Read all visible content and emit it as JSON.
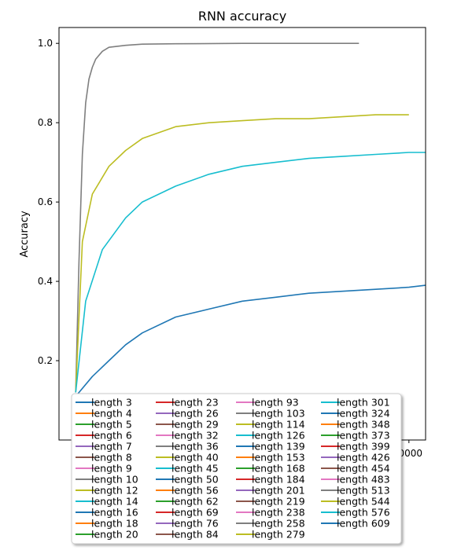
{
  "chart_data": {
    "type": "line",
    "title": "RNN accuracy",
    "xlabel": "",
    "ylabel": "Accuracy",
    "xlim": [
      -500,
      10500
    ],
    "ylim": [
      0.0,
      1.04
    ],
    "yticks": [
      0.2,
      0.4,
      0.6,
      0.8,
      1.0
    ],
    "ytick_labels": [
      "0.2",
      "0.4",
      "0.6",
      "0.8",
      "1.0"
    ],
    "xtick_partial_label": "0000",
    "xtick_partial_value": 10000,
    "grid": false,
    "legend_placement": "bottom",
    "legend_columns": 4,
    "palette": [
      "#1f77b4",
      "#ff7f0e",
      "#2ca02c",
      "#d62728",
      "#9467bd",
      "#8c564b",
      "#e377c2",
      "#7f7f7f",
      "#bcbd22",
      "#17becf"
    ],
    "series": [
      {
        "name": "length 3"
      },
      {
        "name": "length 4"
      },
      {
        "name": "length 5"
      },
      {
        "name": "length 6"
      },
      {
        "name": "length 7"
      },
      {
        "name": "length 8"
      },
      {
        "name": "length 9"
      },
      {
        "name": "length 10"
      },
      {
        "name": "length 12"
      },
      {
        "name": "length 14"
      },
      {
        "name": "length 16"
      },
      {
        "name": "length 18"
      },
      {
        "name": "length 20"
      },
      {
        "name": "length 23"
      },
      {
        "name": "length 26"
      },
      {
        "name": "length 29"
      },
      {
        "name": "length 32"
      },
      {
        "name": "length 36",
        "x": [
          0,
          100,
          200,
          300,
          400,
          500,
          600,
          800,
          1000,
          1500,
          2000,
          3000,
          5000,
          8500
        ],
        "y": [
          0.12,
          0.45,
          0.72,
          0.85,
          0.91,
          0.94,
          0.96,
          0.98,
          0.99,
          0.995,
          0.998,
          0.999,
          1.0,
          1.0
        ]
      },
      {
        "name": "length 40",
        "x": [
          0,
          200,
          500,
          1000,
          1500,
          2000,
          3000,
          4000,
          5000,
          6000,
          7000,
          8000,
          9000,
          10000
        ],
        "y": [
          0.12,
          0.5,
          0.62,
          0.69,
          0.73,
          0.76,
          0.79,
          0.8,
          0.805,
          0.81,
          0.81,
          0.815,
          0.82,
          0.82
        ]
      },
      {
        "name": "length 45",
        "x": [
          0,
          300,
          800,
          1500,
          2000,
          3000,
          4000,
          5000,
          6000,
          7000,
          8000,
          9000,
          10000,
          10500
        ],
        "y": [
          0.12,
          0.35,
          0.48,
          0.56,
          0.6,
          0.64,
          0.67,
          0.69,
          0.7,
          0.71,
          0.715,
          0.72,
          0.725,
          0.725
        ]
      },
      {
        "name": "length 50"
      },
      {
        "name": "length 56"
      },
      {
        "name": "length 62"
      },
      {
        "name": "length 69"
      },
      {
        "name": "length 76"
      },
      {
        "name": "length 84"
      },
      {
        "name": "length 93"
      },
      {
        "name": "length 103"
      },
      {
        "name": "length 114"
      },
      {
        "name": "length 126"
      },
      {
        "name": "length 139"
      },
      {
        "name": "length 153"
      },
      {
        "name": "length 168"
      },
      {
        "name": "length 184"
      },
      {
        "name": "length 201"
      },
      {
        "name": "length 219"
      },
      {
        "name": "length 238"
      },
      {
        "name": "length 258"
      },
      {
        "name": "length 279"
      },
      {
        "name": "length 301"
      },
      {
        "name": "length 324"
      },
      {
        "name": "length 348"
      },
      {
        "name": "length 373"
      },
      {
        "name": "length 399"
      },
      {
        "name": "length 426"
      },
      {
        "name": "length 454"
      },
      {
        "name": "length 483"
      },
      {
        "name": "length 513"
      },
      {
        "name": "length 544"
      },
      {
        "name": "length 576"
      },
      {
        "name": "length 609",
        "x": [
          0,
          500,
          1000,
          1500,
          2000,
          3000,
          4000,
          5000,
          6000,
          7000,
          8000,
          9000,
          10000,
          10500
        ],
        "y": [
          0.11,
          0.16,
          0.2,
          0.24,
          0.27,
          0.31,
          0.33,
          0.35,
          0.36,
          0.37,
          0.375,
          0.38,
          0.385,
          0.39
        ]
      }
    ]
  }
}
